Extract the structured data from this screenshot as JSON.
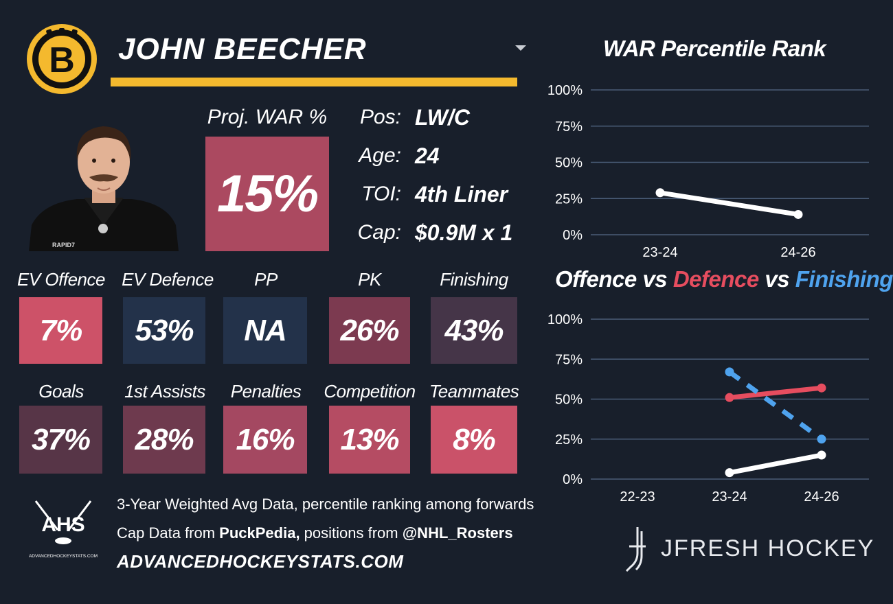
{
  "player": {
    "name": "JOHN BEECHER",
    "team_logo_letter": "B",
    "proj_war_label": "Proj. WAR %",
    "proj_war_value": "15%"
  },
  "info": [
    {
      "label": "Pos:",
      "value": "LW/C"
    },
    {
      "label": "Age:",
      "value": "24"
    },
    {
      "label": "TOI:",
      "value": "4th Liner"
    },
    {
      "label": "Cap:",
      "value": "$0.9M x 1"
    }
  ],
  "stats_row1": [
    {
      "label": "EV Offence",
      "value": "7%",
      "color": "#cd5268"
    },
    {
      "label": "EV Defence",
      "value": "53%",
      "color": "#23324a"
    },
    {
      "label": "PP",
      "value": "NA",
      "color": "#23324a"
    },
    {
      "label": "PK",
      "value": "26%",
      "color": "#7c3a50"
    },
    {
      "label": "Finishing",
      "value": "43%",
      "color": "#453548"
    }
  ],
  "stats_row2": [
    {
      "label": "Goals",
      "value": "37%",
      "color": "#573547"
    },
    {
      "label": "1st Assists",
      "value": "28%",
      "color": "#6e3a4e"
    },
    {
      "label": "Penalties",
      "value": "16%",
      "color": "#a44861"
    },
    {
      "label": "Competition",
      "value": "13%",
      "color": "#b54c63"
    },
    {
      "label": "Teammates",
      "value": "8%",
      "color": "#ca5269"
    }
  ],
  "footer": {
    "ahs_logo": "AHS",
    "ahs_logo_site": "ADVANCEDHOCKEYSTATS.COM",
    "line1": "3-Year Weighted Avg Data, percentile ranking among forwards",
    "line2_prefix": "Cap Data from ",
    "line2_source": "PuckPedia,",
    "line2_middle": " positions from ",
    "line2_handle": "@NHL_Rosters",
    "site": "ADVANCEDHOCKEYSTATS.COM",
    "brand": "JFRESH HOCKEY"
  },
  "colors": {
    "background": "#181f2b",
    "gold": "#f4b92e",
    "offence": "#ffffff",
    "defence": "#e64d5f",
    "finishing": "#4fa3ee",
    "grid": "#4a5d78"
  },
  "chart_data": [
    {
      "type": "line",
      "title": "WAR Percentile Rank",
      "categories": [
        "23-24",
        "24-26"
      ],
      "yticks": [
        "100%",
        "75%",
        "50%",
        "25%",
        "0%"
      ],
      "ylim": [
        0,
        100
      ],
      "grid": true,
      "series": [
        {
          "values": [
            29,
            14
          ],
          "color": "#ffffff",
          "dash": false
        }
      ]
    },
    {
      "type": "line",
      "title": "Offence vs Defence vs Finishing",
      "title_parts": [
        "Offence",
        " vs ",
        "Defence",
        " vs ",
        "Finishing"
      ],
      "categories": [
        "22-23",
        "23-24",
        "24-26"
      ],
      "yticks": [
        "100%",
        "75%",
        "50%",
        "25%",
        "0%"
      ],
      "ylim": [
        0,
        100
      ],
      "grid": true,
      "series": [
        {
          "name": "Offence",
          "values": [
            null,
            4,
            15
          ],
          "color": "#ffffff",
          "dash": false
        },
        {
          "name": "Defence",
          "values": [
            null,
            51,
            57
          ],
          "color": "#e64d5f",
          "dash": false
        },
        {
          "name": "Finishing",
          "values": [
            null,
            67,
            25
          ],
          "color": "#4fa3ee",
          "dash": true
        }
      ]
    }
  ]
}
